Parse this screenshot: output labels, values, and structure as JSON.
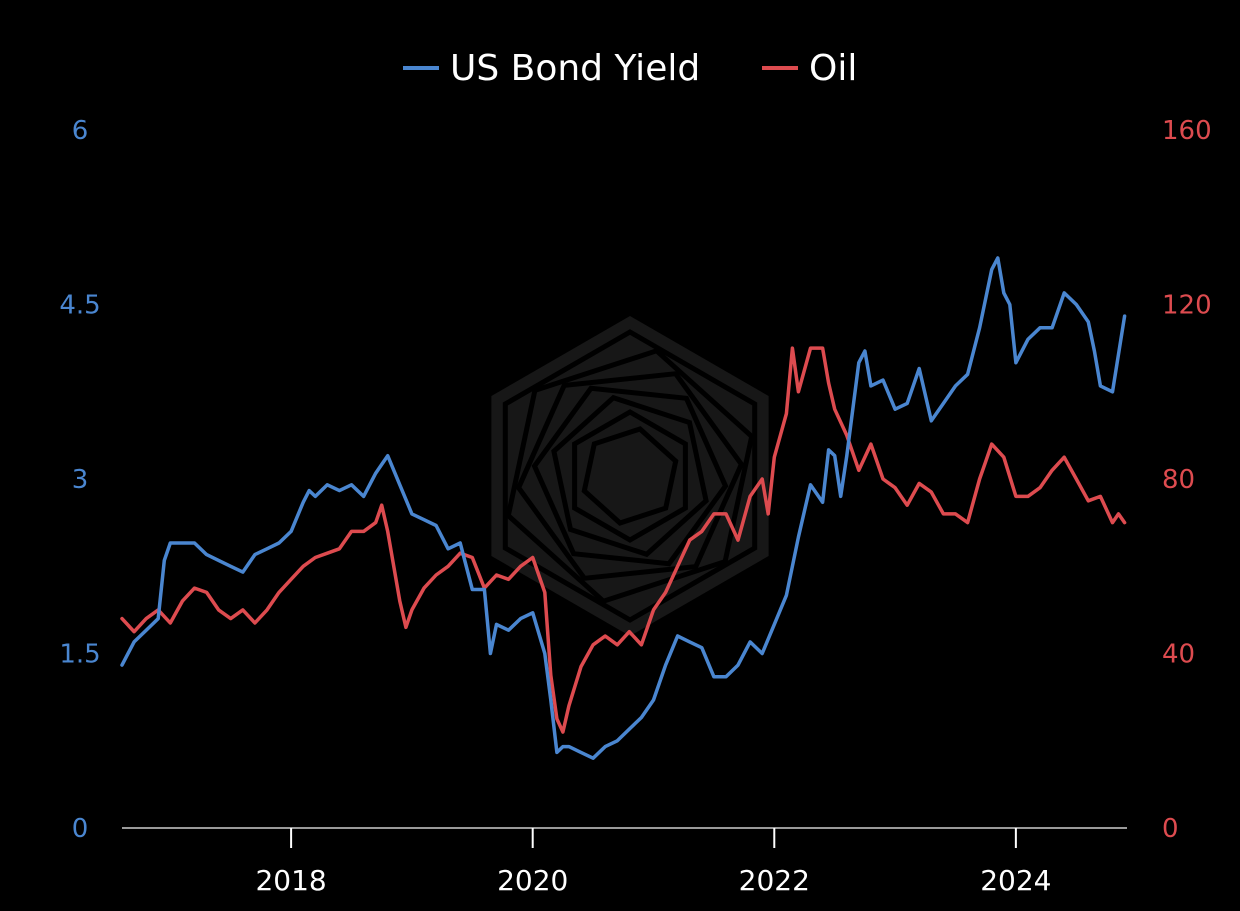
{
  "colors": {
    "background": "#000000",
    "yield": "#4a86d0",
    "oil": "#dd4b4f",
    "axis": "#9a9a9a",
    "text": "#ffffff"
  },
  "legend": {
    "items": [
      {
        "label": "US Bond Yield",
        "color": "#4a86d0"
      },
      {
        "label": "Oil",
        "color": "#dd4b4f"
      }
    ]
  },
  "watermark_icon": "hexagon-spiral-logo-icon",
  "chart_data": {
    "type": "line",
    "title": "",
    "xlabel": "",
    "x_range": [
      2016.6,
      2024.92
    ],
    "x_ticks": [
      2018,
      2020,
      2022,
      2024
    ],
    "x_tick_labels": [
      "2018",
      "2020",
      "2022",
      "2024"
    ],
    "y_left": {
      "ticks": [
        0,
        1.5,
        3,
        4.5,
        6
      ],
      "tick_labels": [
        "0",
        "1.5",
        "3",
        "4.5",
        "6"
      ],
      "range": [
        0,
        6
      ]
    },
    "y_right": {
      "ticks": [
        0,
        40,
        80,
        120,
        160
      ],
      "tick_labels": [
        "0",
        "40",
        "80",
        "120",
        "160"
      ],
      "range": [
        0,
        160
      ]
    },
    "legend_position": "top-center",
    "grid": false,
    "series": [
      {
        "name": "US Bond Yield",
        "axis": "left",
        "x": [
          2016.6,
          2016.7,
          2016.8,
          2016.9,
          2016.95,
          2017.0,
          2017.1,
          2017.2,
          2017.3,
          2017.4,
          2017.5,
          2017.6,
          2017.7,
          2017.8,
          2017.9,
          2018.0,
          2018.1,
          2018.15,
          2018.2,
          2018.3,
          2018.4,
          2018.5,
          2018.6,
          2018.7,
          2018.8,
          2018.9,
          2019.0,
          2019.1,
          2019.2,
          2019.3,
          2019.4,
          2019.5,
          2019.6,
          2019.65,
          2019.7,
          2019.8,
          2019.9,
          2020.0,
          2020.1,
          2020.15,
          2020.2,
          2020.25,
          2020.3,
          2020.4,
          2020.5,
          2020.6,
          2020.7,
          2020.8,
          2020.9,
          2021.0,
          2021.1,
          2021.2,
          2021.3,
          2021.4,
          2021.5,
          2021.6,
          2021.7,
          2021.8,
          2021.9,
          2022.0,
          2022.1,
          2022.2,
          2022.3,
          2022.4,
          2022.45,
          2022.5,
          2022.55,
          2022.6,
          2022.7,
          2022.75,
          2022.8,
          2022.9,
          2023.0,
          2023.1,
          2023.2,
          2023.3,
          2023.4,
          2023.5,
          2023.6,
          2023.7,
          2023.8,
          2023.85,
          2023.9,
          2023.95,
          2024.0,
          2024.1,
          2024.2,
          2024.3,
          2024.4,
          2024.5,
          2024.6,
          2024.65,
          2024.7,
          2024.8,
          2024.9
        ],
        "values": [
          1.4,
          1.6,
          1.7,
          1.8,
          2.3,
          2.45,
          2.45,
          2.45,
          2.35,
          2.3,
          2.25,
          2.2,
          2.35,
          2.4,
          2.45,
          2.55,
          2.8,
          2.9,
          2.85,
          2.95,
          2.9,
          2.95,
          2.85,
          3.05,
          3.2,
          2.95,
          2.7,
          2.65,
          2.6,
          2.4,
          2.45,
          2.05,
          2.05,
          1.5,
          1.75,
          1.7,
          1.8,
          1.85,
          1.5,
          1.1,
          0.65,
          0.7,
          0.7,
          0.65,
          0.6,
          0.7,
          0.75,
          0.85,
          0.95,
          1.1,
          1.4,
          1.65,
          1.6,
          1.55,
          1.3,
          1.3,
          1.4,
          1.6,
          1.5,
          1.75,
          2.0,
          2.5,
          2.95,
          2.8,
          3.25,
          3.2,
          2.85,
          3.2,
          4.0,
          4.1,
          3.8,
          3.85,
          3.6,
          3.65,
          3.95,
          3.5,
          3.65,
          3.8,
          3.9,
          4.3,
          4.8,
          4.9,
          4.6,
          4.5,
          4.0,
          4.2,
          4.3,
          4.3,
          4.6,
          4.5,
          4.35,
          4.1,
          3.8,
          3.75,
          4.4
        ]
      },
      {
        "name": "Oil",
        "axis": "right",
        "x": [
          2016.6,
          2016.7,
          2016.8,
          2016.9,
          2017.0,
          2017.1,
          2017.2,
          2017.3,
          2017.4,
          2017.5,
          2017.6,
          2017.7,
          2017.8,
          2017.9,
          2018.0,
          2018.1,
          2018.2,
          2018.3,
          2018.4,
          2018.5,
          2018.6,
          2018.7,
          2018.75,
          2018.8,
          2018.9,
          2018.95,
          2019.0,
          2019.1,
          2019.2,
          2019.3,
          2019.4,
          2019.5,
          2019.6,
          2019.7,
          2019.8,
          2019.9,
          2020.0,
          2020.1,
          2020.15,
          2020.2,
          2020.25,
          2020.3,
          2020.4,
          2020.5,
          2020.6,
          2020.7,
          2020.8,
          2020.9,
          2021.0,
          2021.1,
          2021.2,
          2021.3,
          2021.4,
          2021.5,
          2021.6,
          2021.7,
          2021.8,
          2021.9,
          2021.95,
          2022.0,
          2022.1,
          2022.15,
          2022.2,
          2022.3,
          2022.4,
          2022.45,
          2022.5,
          2022.6,
          2022.7,
          2022.8,
          2022.9,
          2023.0,
          2023.1,
          2023.2,
          2023.3,
          2023.4,
          2023.5,
          2023.6,
          2023.7,
          2023.75,
          2023.8,
          2023.9,
          2024.0,
          2024.1,
          2024.2,
          2024.3,
          2024.4,
          2024.5,
          2024.6,
          2024.7,
          2024.8,
          2024.85,
          2024.9
        ],
        "values": [
          48,
          45,
          48,
          50,
          47,
          52,
          55,
          54,
          50,
          48,
          50,
          47,
          50,
          54,
          57,
          60,
          62,
          63,
          64,
          68,
          68,
          70,
          74,
          68,
          52,
          46,
          50,
          55,
          58,
          60,
          63,
          62,
          55,
          58,
          57,
          60,
          62,
          54,
          35,
          25,
          22,
          28,
          37,
          42,
          44,
          42,
          45,
          42,
          50,
          54,
          60,
          66,
          68,
          72,
          72,
          66,
          76,
          80,
          72,
          85,
          95,
          110,
          100,
          110,
          110,
          102,
          96,
          90,
          82,
          88,
          80,
          78,
          74,
          79,
          77,
          72,
          72,
          70,
          80,
          84,
          88,
          85,
          76,
          76,
          78,
          82,
          85,
          80,
          75,
          76,
          70,
          72,
          70
        ]
      }
    ]
  }
}
